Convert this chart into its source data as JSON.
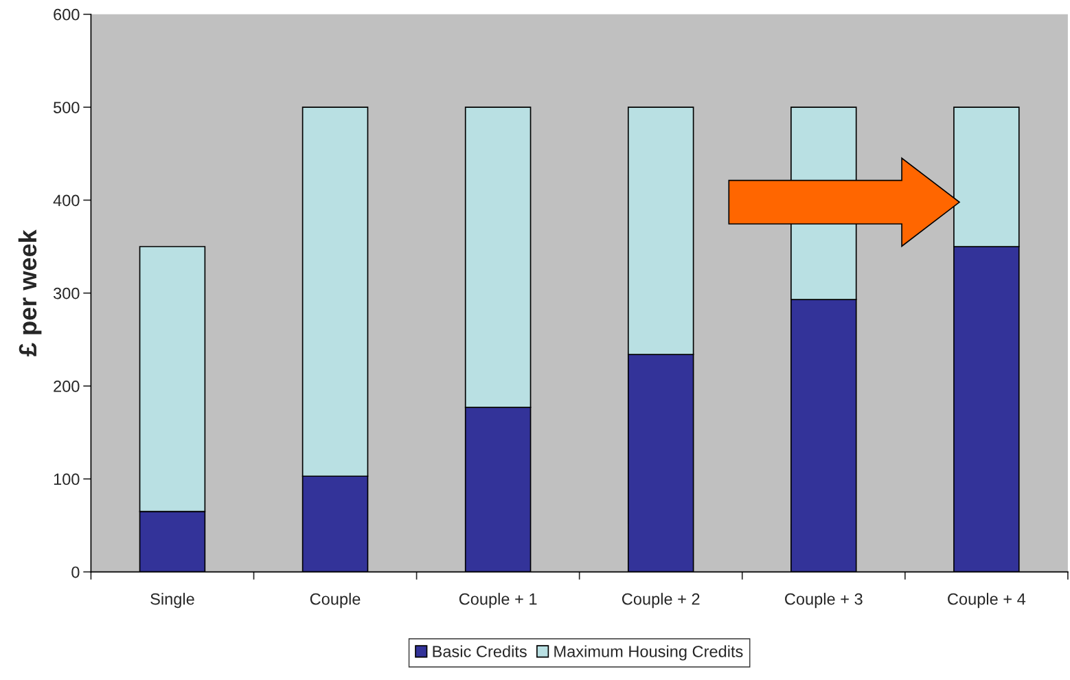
{
  "chart_data": {
    "type": "bar",
    "ylabel": "£ per week",
    "categories": [
      "Single",
      "Couple",
      "Couple + 1",
      "Couple + 2",
      "Couple + 3",
      "Couple + 4"
    ],
    "stacked": true,
    "series": [
      {
        "name": "Basic Credits",
        "color": "#333399",
        "values": [
          65,
          103,
          177,
          234,
          293,
          350
        ]
      },
      {
        "name": "Maximum Housing Credits",
        "color": "#b9e0e3",
        "values": [
          285,
          397,
          323,
          266,
          207,
          150
        ]
      }
    ],
    "ylim": [
      0,
      600
    ],
    "yticks": [
      0,
      100,
      200,
      300,
      400,
      500,
      600
    ],
    "grid": false,
    "legend": "bottom"
  }
}
